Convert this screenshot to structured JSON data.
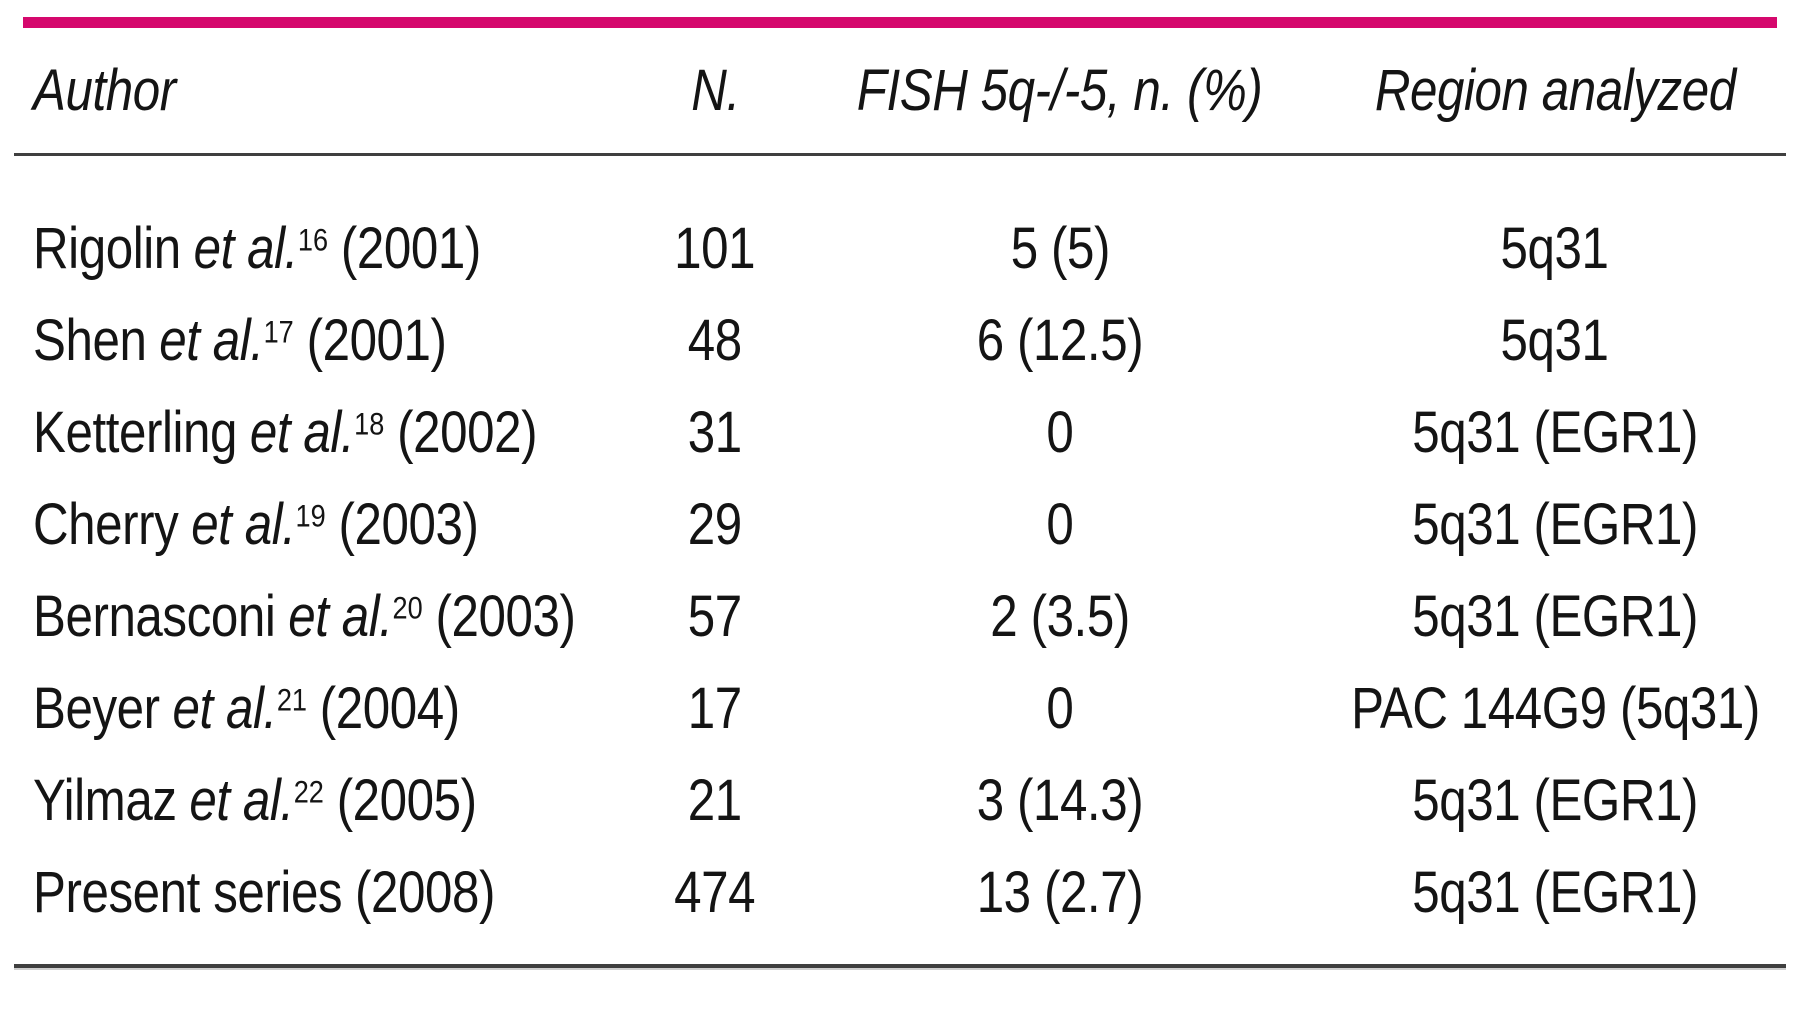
{
  "accent_color": "#d5086d",
  "table": {
    "headers": {
      "author": "Author",
      "n": "N.",
      "fish": "FISH 5q-/-5, n. (%)",
      "region": "Region analyzed"
    },
    "rows": [
      {
        "author": "Rigolin",
        "etal": "et al.",
        "ref": "16",
        "year": "(2001)",
        "n": "101",
        "fish": "5 (5)",
        "region": "5q31"
      },
      {
        "author": "Shen",
        "etal": "et al.",
        "ref": "17",
        "year": "(2001)",
        "n": "48",
        "fish": "6 (12.5)",
        "region": "5q31"
      },
      {
        "author": "Ketterling",
        "etal": "et al.",
        "ref": "18",
        "year": "(2002)",
        "n": "31",
        "fish": "0",
        "region": "5q31 (EGR1)"
      },
      {
        "author": "Cherry",
        "etal": "et al.",
        "ref": "19",
        "year": "(2003)",
        "n": "29",
        "fish": "0",
        "region": "5q31 (EGR1)"
      },
      {
        "author": "Bernasconi",
        "etal": "et al.",
        "ref": "20",
        "year": "(2003)",
        "n": "57",
        "fish": "2 (3.5)",
        "region": "5q31 (EGR1)"
      },
      {
        "author": "Beyer",
        "etal": "et al.",
        "ref": "21",
        "year": "(2004)",
        "n": "17",
        "fish": "0",
        "region": "PAC 144G9 (5q31)"
      },
      {
        "author": "Yilmaz",
        "etal": "et al.",
        "ref": "22",
        "year": "(2005)",
        "n": "21",
        "fish": "3 (14.3)",
        "region": "5q31 (EGR1)"
      },
      {
        "author": "Present series",
        "etal": "",
        "ref": "",
        "year": "(2008)",
        "n": "474",
        "fish": "13 (2.7)",
        "region": "5q31 (EGR1)"
      }
    ]
  }
}
